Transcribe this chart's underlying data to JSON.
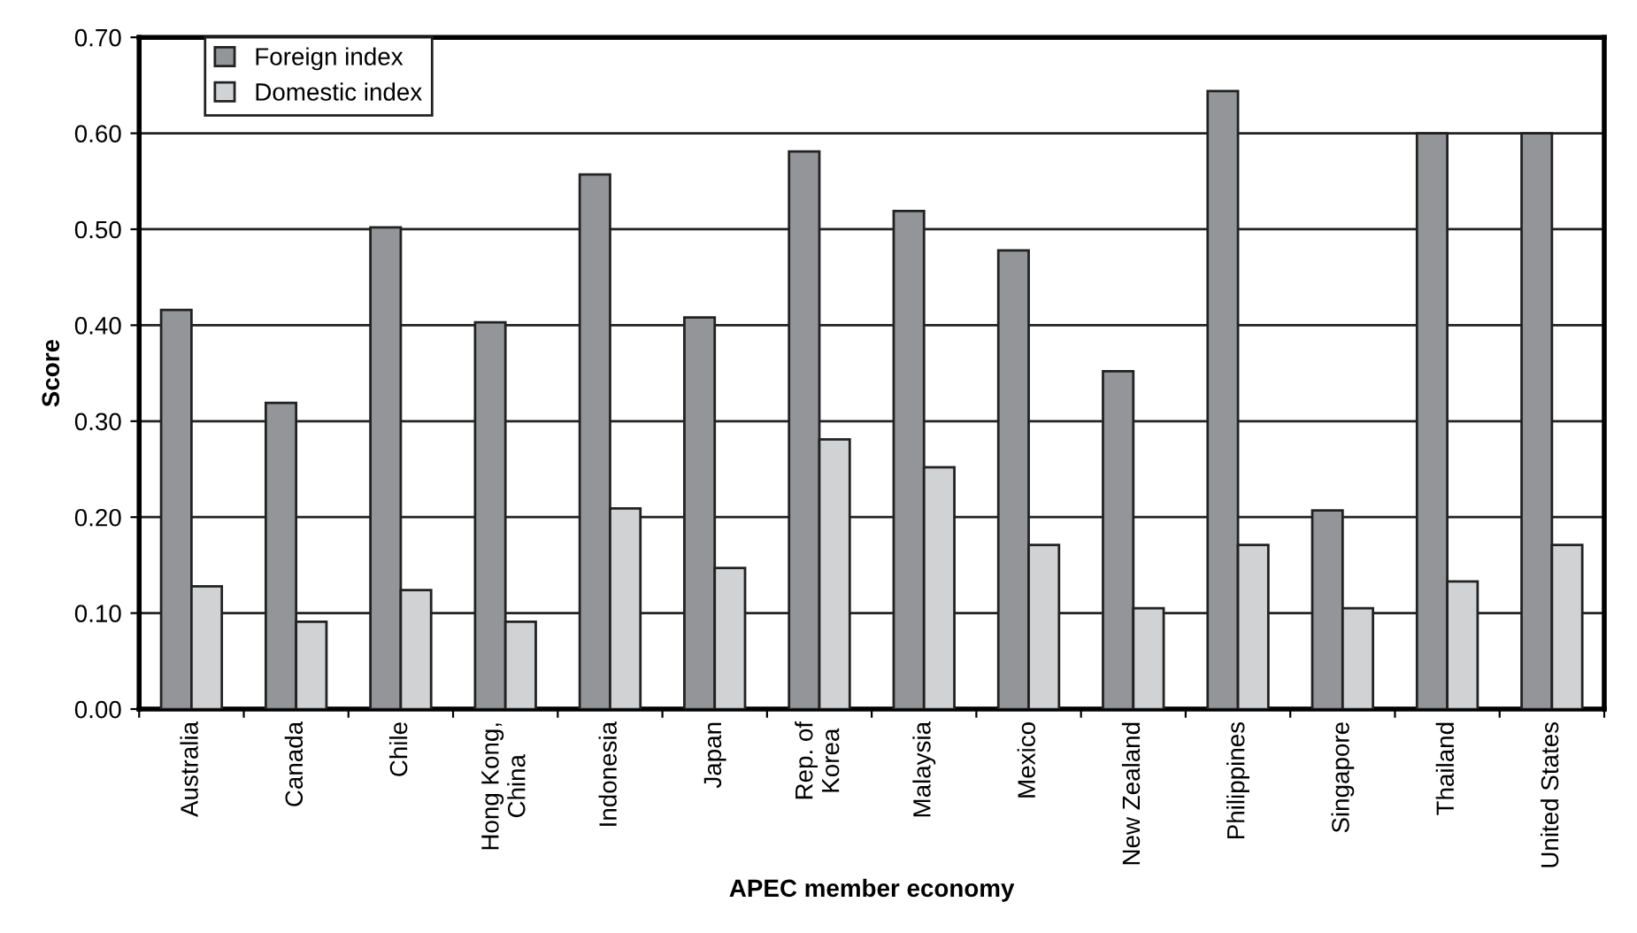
{
  "chart_data": {
    "type": "bar",
    "xlabel": "APEC member economy",
    "ylabel": "Score",
    "categories": [
      "Australia",
      "Canada",
      "Chile",
      "Hong Kong,\nChina",
      "Indonesia",
      "Japan",
      "Rep. of\nKorea",
      "Malaysia",
      "Mexico",
      "New Zealand",
      "Philippines",
      "Singapore",
      "Thailand",
      "United States"
    ],
    "series": [
      {
        "name": "Foreign index",
        "color": "#939598",
        "values": [
          0.416,
          0.319,
          0.502,
          0.403,
          0.557,
          0.408,
          0.581,
          0.519,
          0.478,
          0.352,
          0.644,
          0.207,
          0.6,
          0.6
        ]
      },
      {
        "name": "Domestic index",
        "color": "#d1d2d4",
        "values": [
          0.128,
          0.091,
          0.124,
          0.091,
          0.209,
          0.147,
          0.281,
          0.252,
          0.171,
          0.105,
          0.171,
          0.105,
          0.133,
          0.171
        ]
      }
    ],
    "ylim": [
      0,
      0.7
    ],
    "yticks": [
      {
        "value": 0,
        "label": "0.00"
      },
      {
        "value": 0.1,
        "label": "0.10"
      },
      {
        "value": 0.2,
        "label": "0.20"
      },
      {
        "value": 0.3,
        "label": "0.30"
      },
      {
        "value": 0.4,
        "label": "0.40"
      },
      {
        "value": 0.5,
        "label": "0.50"
      },
      {
        "value": 0.6,
        "label": "0.60"
      },
      {
        "value": 0.7,
        "label": "0.70"
      }
    ],
    "grid": "y",
    "legend": "top left"
  }
}
